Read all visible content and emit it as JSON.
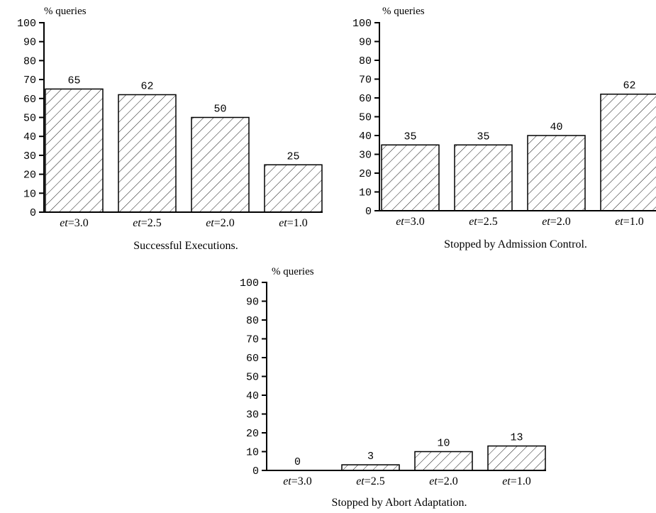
{
  "chart_data": [
    {
      "type": "bar",
      "title": "Successful Executions.",
      "ylabel": "% queries",
      "ylim": [
        0,
        100
      ],
      "yticks": [
        "0",
        "10",
        "20",
        "30",
        "40",
        "50",
        "60",
        "70",
        "80",
        "90",
        "100"
      ],
      "categories": [
        {
          "italic": "et",
          "rest": "=3.0"
        },
        {
          "italic": "et",
          "rest": "=2.5"
        },
        {
          "italic": "et",
          "rest": "=2.0"
        },
        {
          "italic": "et",
          "rest": "=1.0"
        }
      ],
      "values": [
        65,
        62,
        50,
        25
      ],
      "bar_fill": "hatched",
      "grid": false,
      "legend": "none"
    },
    {
      "type": "bar",
      "title": "Stopped by Admission Control.",
      "ylabel": "% queries",
      "ylim": [
        0,
        100
      ],
      "yticks": [
        "0",
        "10",
        "20",
        "30",
        "40",
        "50",
        "60",
        "70",
        "80",
        "90",
        "100"
      ],
      "categories": [
        {
          "italic": "et",
          "rest": "=3.0"
        },
        {
          "italic": "et",
          "rest": "=2.5"
        },
        {
          "italic": "et",
          "rest": "=2.0"
        },
        {
          "italic": "et",
          "rest": "=1.0"
        }
      ],
      "values": [
        35,
        35,
        40,
        62
      ],
      "bar_fill": "hatched",
      "grid": false,
      "legend": "none"
    },
    {
      "type": "bar",
      "title": "Stopped by Abort Adaptation.",
      "ylabel": "% queries",
      "ylim": [
        0,
        100
      ],
      "yticks": [
        "0",
        "10",
        "20",
        "30",
        "40",
        "50",
        "60",
        "70",
        "80",
        "90",
        "100"
      ],
      "categories": [
        {
          "italic": "et",
          "rest": "=3.0"
        },
        {
          "italic": "et",
          "rest": "=2.5"
        },
        {
          "italic": "et",
          "rest": "=2.0"
        },
        {
          "italic": "et",
          "rest": "=1.0"
        }
      ],
      "values": [
        0,
        3,
        10,
        13
      ],
      "bar_fill": "hatched",
      "grid": false,
      "legend": "none"
    }
  ],
  "colors": {
    "bar_stroke": "#000000",
    "hatch": "#000000",
    "background": "#ffffff"
  }
}
